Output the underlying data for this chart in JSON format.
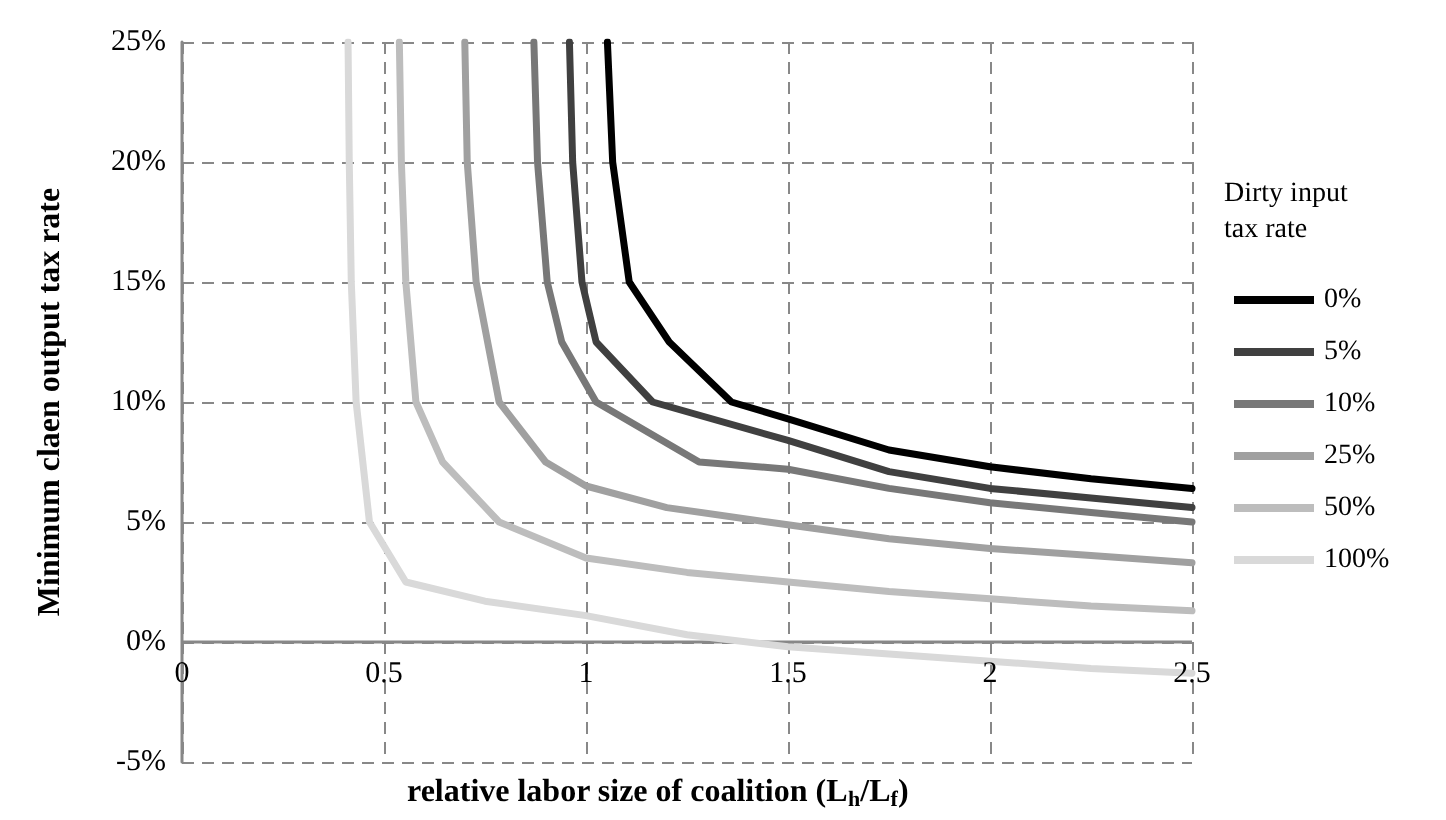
{
  "chart_data": {
    "type": "line",
    "xlabel": "relative labor size of coalition (L$_{h}$/L$_{f}$)",
    "ylabel": "Minimum claen output tax rate",
    "legend_title": "Dirty input tax rate",
    "series": [
      {
        "name": "0%",
        "color": "#000000",
        "x": [
          1.053,
          1.066,
          1.107,
          1.206,
          1.36,
          1.5,
          1.75,
          2,
          2.25,
          2.5
        ],
        "values": [
          25,
          20,
          15,
          12.5,
          10,
          9.3,
          8.0,
          7.3,
          6.8,
          6.4
        ]
      },
      {
        "name": "5%",
        "color": "#404040",
        "x": [
          0.959,
          0.967,
          0.99,
          1.025,
          1.165,
          1.5,
          1.75,
          2,
          2.25,
          2.5
        ],
        "values": [
          25,
          20,
          15,
          12.5,
          10,
          8.4,
          7.1,
          6.4,
          6.0,
          5.6
        ]
      },
      {
        "name": "10%",
        "color": "#787878",
        "x": [
          0.871,
          0.88,
          0.904,
          0.94,
          1.025,
          1.28,
          1.5,
          1.75,
          2,
          2.25,
          2.5
        ],
        "values": [
          25,
          20,
          15,
          12.5,
          10,
          7.5,
          7.2,
          6.4,
          5.8,
          5.4,
          5.0
        ]
      },
      {
        "name": "25%",
        "color": "#a0a0a0",
        "x": [
          0.7,
          0.706,
          0.728,
          0.785,
          0.9,
          1.0,
          1.2,
          1.45,
          1.75,
          2,
          2.25,
          2.5
        ],
        "values": [
          25,
          20,
          15,
          10,
          7.5,
          6.5,
          5.6,
          5.0,
          4.3,
          3.9,
          3.6,
          3.3
        ]
      },
      {
        "name": "50%",
        "color": "#bdbdbd",
        "x": [
          0.538,
          0.543,
          0.554,
          0.579,
          0.645,
          0.785,
          1.0,
          1.25,
          1.5,
          1.75,
          2,
          2.25,
          2.5
        ],
        "values": [
          25,
          20,
          15,
          10,
          7.5,
          5,
          3.5,
          2.9,
          2.5,
          2.1,
          1.8,
          1.5,
          1.3
        ]
      },
      {
        "name": "100%",
        "color": "#d9d9d9",
        "x": [
          0.411,
          0.414,
          0.419,
          0.431,
          0.464,
          0.554,
          0.75,
          1.0,
          1.25,
          1.5,
          1.75,
          2,
          2.25,
          2.5
        ],
        "values": [
          25,
          20,
          15,
          10,
          5,
          2.5,
          1.7,
          1.1,
          0.3,
          -0.2,
          -0.5,
          -0.8,
          -1.1,
          -1.3
        ]
      }
    ],
    "xlim": [
      0,
      2.5
    ],
    "xticks": [
      0,
      0.5,
      1,
      1.5,
      2,
      2.5
    ],
    "ylim": [
      -5,
      25
    ],
    "yticks": [
      {
        "value": -5,
        "label": "-5%"
      },
      {
        "value": 0,
        "label": "0%"
      },
      {
        "value": 5,
        "label": "5%"
      },
      {
        "value": 10,
        "label": "10%"
      },
      {
        "value": 15,
        "label": "15%"
      },
      {
        "value": 20,
        "label": "20%"
      },
      {
        "value": 25,
        "label": "25%"
      }
    ],
    "grid": true,
    "legend": "right",
    "marker": "none",
    "line_style": "solid"
  }
}
